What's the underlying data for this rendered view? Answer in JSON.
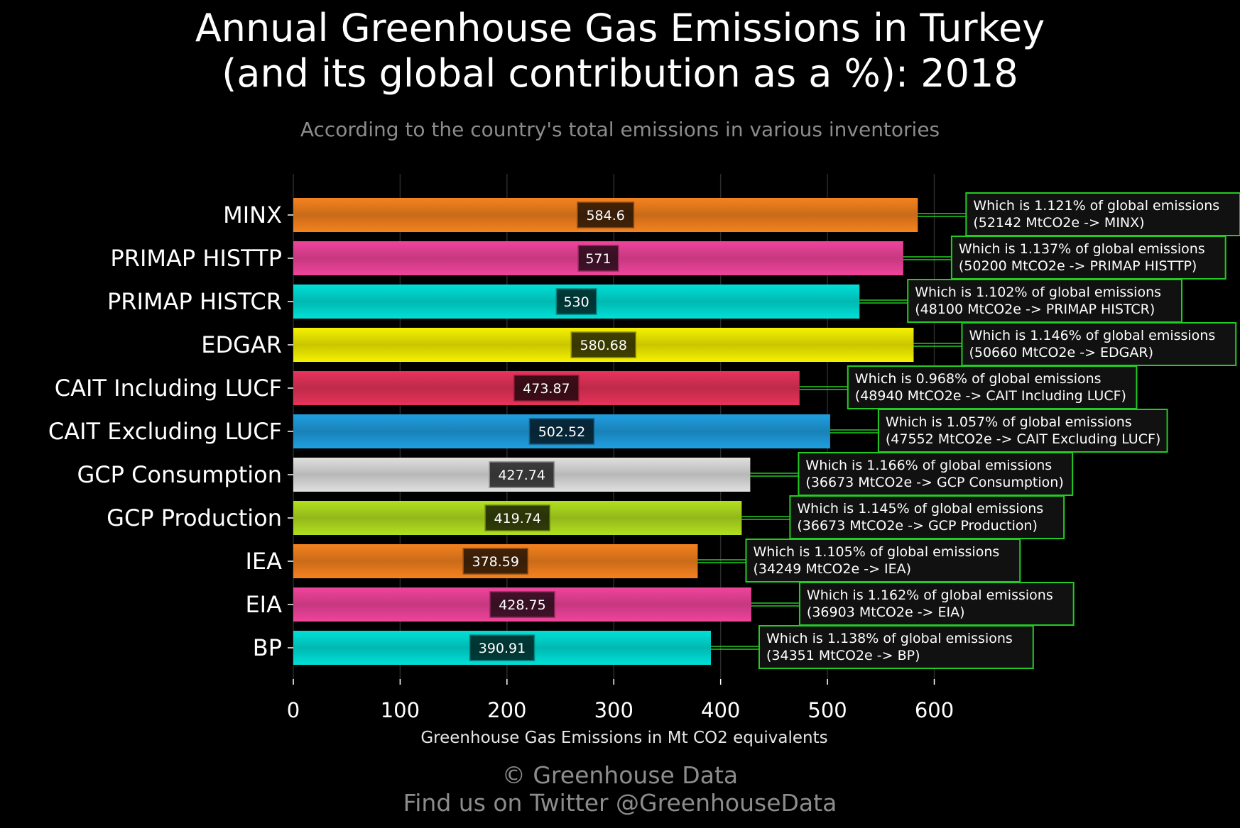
{
  "title_line1": "Annual Greenhouse Gas Emissions in Turkey",
  "title_line2": "(and its global contribution as a %): 2018",
  "subtitle": "According to the country's total emissions in various inventories",
  "footer_line1": "© Greenhouse Data",
  "footer_line2": "Find us on Twitter @GreenhouseData",
  "chart_data": {
    "type": "bar",
    "orientation": "horizontal",
    "title": "Annual Greenhouse Gas Emissions in Turkey (and its global contribution as a %): 2018",
    "subtitle": "According to the country's total emissions in various inventories",
    "xlabel": "Greenhouse Gas Emissions in Mt CO2 equivalents",
    "ylabel": "",
    "xlim": [
      0,
      600
    ],
    "xticks": [
      0,
      100,
      200,
      300,
      400,
      500,
      600
    ],
    "xtick_labels": [
      "0",
      "100",
      "200",
      "300",
      "400",
      "500",
      "600"
    ],
    "grid": "vertical gridlines",
    "categories": [
      "MINX",
      "PRIMAP HISTTP",
      "PRIMAP HISTCR",
      "EDGAR",
      "CAIT Including LUCF",
      "CAIT Excluding LUCF",
      "GCP Consumption",
      "GCP Production",
      "IEA",
      "EIA",
      "BP"
    ],
    "values": [
      584.6,
      571,
      530,
      580.68,
      473.87,
      502.52,
      427.74,
      419.74,
      378.59,
      428.75,
      390.91
    ],
    "value_labels": [
      "584.6",
      "571",
      "530",
      "580.68",
      "473.87",
      "502.52",
      "427.74",
      "419.74",
      "378.59",
      "428.75",
      "390.91"
    ],
    "colors": [
      "#f5821f",
      "#f0449b",
      "#00e0d8",
      "#f5f200",
      "#e8335a",
      "#1f9fe0",
      "#e0e0e0",
      "#b2e01f",
      "#f5821f",
      "#f0449b",
      "#00e0d8"
    ],
    "annotations": [
      {
        "line1": "Which is 1.121% of global emissions",
        "line2": "(52142 MtCO2e -> MINX)"
      },
      {
        "line1": "Which is 1.137% of global emissions",
        "line2": "(50200 MtCO2e -> PRIMAP HISTTP)"
      },
      {
        "line1": "Which is 1.102% of global emissions",
        "line2": "(48100 MtCO2e -> PRIMAP HISTCR)"
      },
      {
        "line1": "Which is 1.146% of global emissions",
        "line2": "(50660 MtCO2e -> EDGAR)"
      },
      {
        "line1": "Which is 0.968% of global emissions",
        "line2": "(48940 MtCO2e -> CAIT Including LUCF)"
      },
      {
        "line1": "Which is 1.057% of global emissions",
        "line2": "(47552 MtCO2e -> CAIT Excluding LUCF)"
      },
      {
        "line1": "Which is 1.166% of global emissions",
        "line2": "(36673 MtCO2e -> GCP Consumption)"
      },
      {
        "line1": "Which is 1.145% of global emissions",
        "line2": "(36673 MtCO2e -> GCP Production)"
      },
      {
        "line1": "Which is 1.105% of global emissions",
        "line2": "(34249 MtCO2e -> IEA)"
      },
      {
        "line1": "Which is 1.162% of global emissions",
        "line2": "(36903 MtCO2e -> EIA)"
      },
      {
        "line1": "Which is 1.138% of global emissions",
        "line2": "(34351 MtCO2e -> BP)"
      }
    ],
    "annotation_border_color": "#22cc22"
  }
}
